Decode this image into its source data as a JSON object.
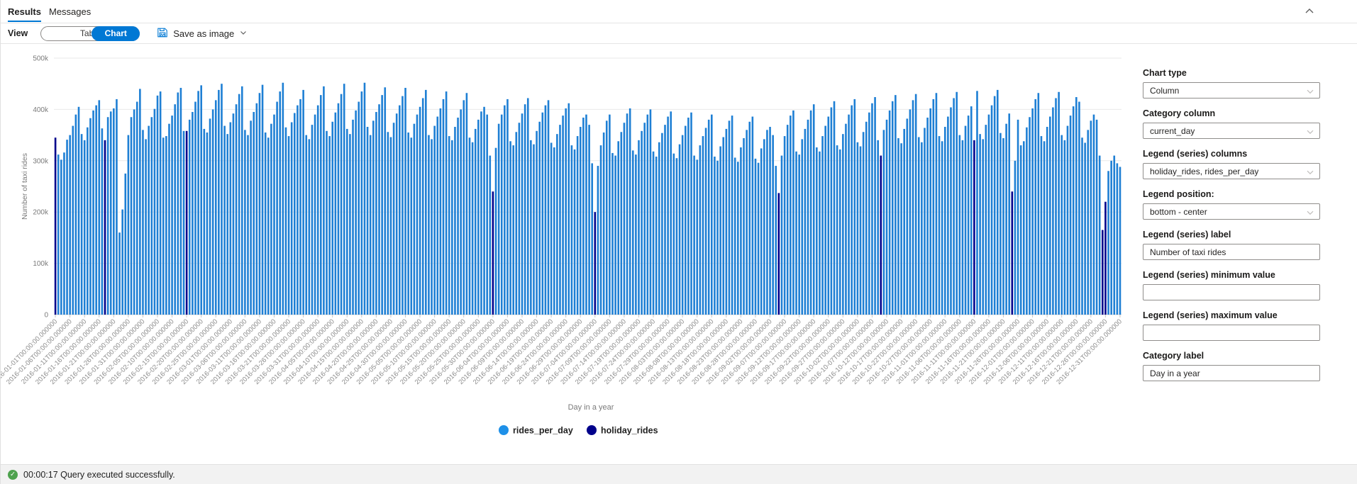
{
  "tabs": {
    "results": "Results",
    "messages": "Messages"
  },
  "toolbar": {
    "view_label": "View",
    "table_label": "Table",
    "chart_label": "Chart",
    "save_as_image_label": "Save as image"
  },
  "panel": {
    "chart_type": {
      "label": "Chart type",
      "value": "Column"
    },
    "category_column": {
      "label": "Category column",
      "value": "current_day"
    },
    "legend_columns": {
      "label": "Legend (series) columns",
      "value": "holiday_rides, rides_per_day"
    },
    "legend_position": {
      "label": "Legend position:",
      "value": "bottom - center"
    },
    "legend_label": {
      "label": "Legend (series) label",
      "value": "Number of taxi rides"
    },
    "legend_min": {
      "label": "Legend (series) minimum value",
      "value": ""
    },
    "legend_max": {
      "label": "Legend (series) maximum value",
      "value": ""
    },
    "category_label": {
      "label": "Category label",
      "value": "Day in a year"
    }
  },
  "status_bar": {
    "text": "00:00:17 Query executed successfully."
  },
  "colors": {
    "accent": "#0078d4",
    "bar": "#1e7fd4",
    "holiday_bar": "#00008b",
    "success": "#4ea24e"
  },
  "chart_data": {
    "type": "bar",
    "title": "",
    "xlabel": "Day in a year",
    "ylabel": "Number of taxi rides",
    "ylim": [
      0,
      500000
    ],
    "y_ticks": [
      "0",
      "100k",
      "200k",
      "300k",
      "400k",
      "500k"
    ],
    "grid": true,
    "legend_position": "bottom-center",
    "legend": [
      "rides_per_day",
      "holiday_rides"
    ],
    "series": [
      {
        "name": "rides_per_day",
        "color": "#1e7fd4"
      },
      {
        "name": "holiday_rides",
        "color": "#00008b"
      }
    ],
    "unit": "values in thousands of rides per day, 2016-01-01 .. 2016-12-31",
    "values_thousands": [
      345,
      312,
      302,
      316,
      341,
      350,
      368,
      390,
      405,
      352,
      340,
      365,
      383,
      398,
      408,
      418,
      363,
      340,
      385,
      396,
      402,
      420,
      160,
      205,
      275,
      350,
      385,
      400,
      415,
      440,
      360,
      342,
      368,
      385,
      401,
      427,
      435,
      345,
      348,
      372,
      388,
      410,
      433,
      442,
      358,
      358,
      380,
      395,
      415,
      436,
      447,
      362,
      355,
      382,
      400,
      418,
      438,
      450,
      368,
      352,
      375,
      392,
      410,
      430,
      445,
      360,
      350,
      378,
      395,
      412,
      432,
      448,
      355,
      345,
      372,
      390,
      415,
      435,
      452,
      365,
      348,
      375,
      393,
      408,
      420,
      438,
      350,
      342,
      370,
      390,
      408,
      428,
      445,
      358,
      348,
      376,
      394,
      412,
      430,
      450,
      362,
      352,
      380,
      398,
      415,
      435,
      452,
      366,
      350,
      378,
      395,
      410,
      428,
      443,
      356,
      346,
      374,
      392,
      408,
      426,
      442,
      355,
      345,
      372,
      390,
      405,
      422,
      438,
      350,
      342,
      368,
      386,
      402,
      420,
      435,
      348,
      340,
      366,
      384,
      400,
      418,
      432,
      345,
      336,
      362,
      380,
      396,
      405,
      390,
      310,
      240,
      325,
      372,
      390,
      408,
      420,
      338,
      330,
      356,
      374,
      392,
      410,
      422,
      340,
      332,
      358,
      376,
      394,
      408,
      418,
      335,
      326,
      352,
      370,
      388,
      402,
      412,
      330,
      322,
      348,
      366,
      384,
      390,
      370,
      295,
      200,
      290,
      330,
      355,
      378,
      390,
      315,
      310,
      338,
      356,
      374,
      392,
      402,
      320,
      312,
      340,
      358,
      374,
      390,
      400,
      318,
      308,
      336,
      354,
      370,
      386,
      396,
      314,
      305,
      332,
      350,
      368,
      384,
      394,
      310,
      302,
      330,
      348,
      364,
      380,
      390,
      308,
      300,
      328,
      346,
      362,
      378,
      388,
      306,
      298,
      326,
      344,
      360,
      376,
      386,
      304,
      296,
      324,
      342,
      360,
      366,
      350,
      290,
      237,
      310,
      348,
      370,
      388,
      398,
      318,
      312,
      342,
      362,
      380,
      398,
      410,
      326,
      318,
      348,
      368,
      386,
      404,
      416,
      330,
      322,
      352,
      372,
      390,
      408,
      420,
      336,
      328,
      356,
      376,
      394,
      412,
      424,
      340,
      310,
      360,
      380,
      398,
      416,
      428,
      344,
      334,
      362,
      382,
      400,
      418,
      430,
      346,
      336,
      364,
      384,
      402,
      420,
      432,
      348,
      338,
      366,
      386,
      404,
      422,
      434,
      350,
      340,
      368,
      388,
      406,
      340,
      436,
      352,
      342,
      370,
      390,
      408,
      426,
      438,
      354,
      344,
      372,
      392,
      240,
      300,
      380,
      330,
      338,
      365,
      385,
      402,
      420,
      432,
      348,
      338,
      366,
      386,
      404,
      422,
      434,
      350,
      340,
      368,
      388,
      406,
      424,
      415,
      345,
      335,
      360,
      378,
      390,
      380,
      310,
      165,
      220,
      280,
      300,
      310,
      295,
      288
    ],
    "holiday_indices": [
      0,
      17,
      45,
      150,
      185,
      248,
      283,
      315,
      328,
      359,
      360
    ],
    "x_tick_interval": 5,
    "x_tick_labels": [
      "2016-01-01T00:00:00.000000",
      "2016-01-06T00:00:00.000000",
      "2016-01-11T00:00:00.000000",
      "2016-01-16T00:00:00.000000",
      "2016-01-21T00:00:00.000000",
      "2016-01-26T00:00:00.000000",
      "2016-01-31T00:00:00.000000",
      "2016-02-05T00:00:00.000000",
      "2016-02-10T00:00:00.000000",
      "2016-02-15T00:00:00.000000",
      "2016-02-20T00:00:00.000000",
      "2016-02-25T00:00:00.000000",
      "2016-03-01T00:00:00.000000",
      "2016-03-06T00:00:00.000000",
      "2016-03-11T00:00:00.000000",
      "2016-03-16T00:00:00.000000",
      "2016-03-21T00:00:00.000000",
      "2016-03-26T00:00:00.000000",
      "2016-03-31T00:00:00.000000",
      "2016-04-05T00:00:00.000000",
      "2016-04-10T00:00:00.000000",
      "2016-04-15T00:00:00.000000",
      "2016-04-20T00:00:00.000000",
      "2016-04-25T00:00:00.000000",
      "2016-04-30T00:00:00.000000",
      "2016-05-05T00:00:00.000000",
      "2016-05-10T00:00:00.000000",
      "2016-05-15T00:00:00.000000",
      "2016-05-20T00:00:00.000000",
      "2016-05-25T00:00:00.000000",
      "2016-05-30T00:00:00.000000",
      "2016-06-04T00:00:00.000000",
      "2016-06-09T00:00:00.000000",
      "2016-06-14T00:00:00.000000",
      "2016-06-19T00:00:00.000000",
      "2016-06-24T00:00:00.000000",
      "2016-06-29T00:00:00.000000",
      "2016-07-04T00:00:00.000000",
      "2016-07-09T00:00:00.000000",
      "2016-07-14T00:00:00.000000",
      "2016-07-19T00:00:00.000000",
      "2016-07-24T00:00:00.000000",
      "2016-07-29T00:00:00.000000",
      "2016-08-03T00:00:00.000000",
      "2016-08-08T00:00:00.000000",
      "2016-08-13T00:00:00.000000",
      "2016-08-18T00:00:00.000000",
      "2016-08-23T00:00:00.000000",
      "2016-08-28T00:00:00.000000",
      "2016-09-02T00:00:00.000000",
      "2016-09-07T00:00:00.000000",
      "2016-09-12T00:00:00.000000",
      "2016-09-17T00:00:00.000000",
      "2016-09-22T00:00:00.000000",
      "2016-09-27T00:00:00.000000",
      "2016-10-02T00:00:00.000000",
      "2016-10-07T00:00:00.000000",
      "2016-10-12T00:00:00.000000",
      "2016-10-17T00:00:00.000000",
      "2016-10-22T00:00:00.000000",
      "2016-10-27T00:00:00.000000",
      "2016-11-01T00:00:00.000000",
      "2016-11-06T00:00:00.000000",
      "2016-11-11T00:00:00.000000",
      "2016-11-16T00:00:00.000000",
      "2016-11-21T00:00:00.000000",
      "2016-11-26T00:00:00.000000",
      "2016-12-01T00:00:00.000000",
      "2016-12-06T00:00:00.000000",
      "2016-12-11T00:00:00.000000",
      "2016-12-16T00:00:00.000000",
      "2016-12-21T00:00:00.000000",
      "2016-12-26T00:00:00.000000",
      "2016-12-31T00:00:00.000000"
    ]
  }
}
